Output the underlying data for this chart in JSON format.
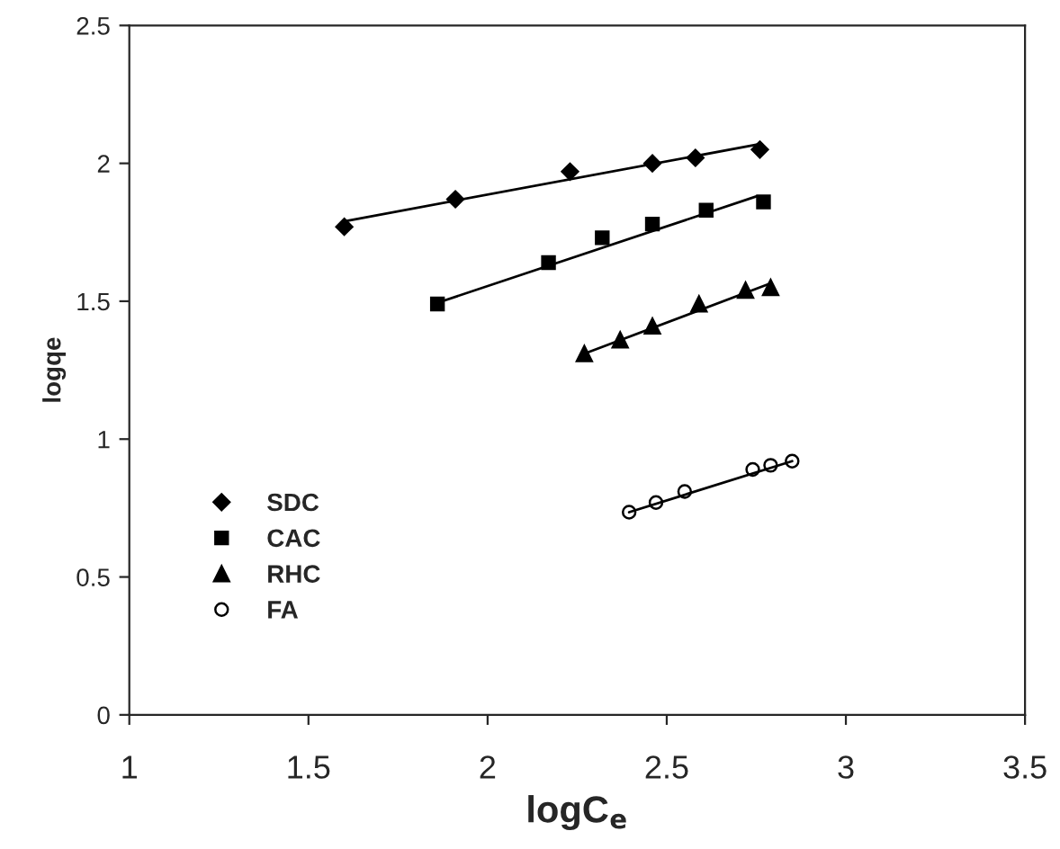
{
  "chart_data": {
    "type": "scatter",
    "xlabel": "logC$_{e}$",
    "ylabel": "logqe",
    "xlim": [
      1,
      3.5
    ],
    "xticks": [
      1,
      1.5,
      2,
      2.5,
      3,
      3.5
    ],
    "ylim": [
      0,
      2.5
    ],
    "yticks": [
      0,
      0.5,
      1,
      1.5,
      2,
      2.5
    ],
    "grid": false,
    "legend": "bottom left",
    "series": [
      {
        "name": "SDC",
        "color": "#000000",
        "marker": "diamond",
        "x": [
          1.6,
          1.91,
          2.23,
          2.46,
          2.58,
          2.76
        ],
        "values": [
          1.77,
          1.87,
          1.97,
          2.0,
          2.02,
          2.05
        ]
      },
      {
        "name": "CAC",
        "color": "#000000",
        "marker": "square",
        "x": [
          1.86,
          2.17,
          2.32,
          2.46,
          2.61,
          2.77
        ],
        "values": [
          1.49,
          1.64,
          1.73,
          1.78,
          1.83,
          1.86
        ]
      },
      {
        "name": "RHC",
        "color": "#000000",
        "marker": "triangle",
        "x": [
          2.27,
          2.37,
          2.46,
          2.59,
          2.72,
          2.79
        ],
        "values": [
          1.31,
          1.36,
          1.41,
          1.49,
          1.54,
          1.55
        ]
      },
      {
        "name": "FA",
        "color": "#000000",
        "marker": "circle",
        "x": [
          2.395,
          2.47,
          2.55,
          2.74,
          2.79,
          2.85
        ],
        "values": [
          0.735,
          0.77,
          0.81,
          0.89,
          0.905,
          0.92
        ]
      },
      {
        "type": "line",
        "color": "#000000",
        "marker": "none",
        "x": [
          1.6,
          2.76
        ],
        "values": [
          1.79,
          2.07
        ]
      },
      {
        "type": "line",
        "color": "#000000",
        "marker": "none",
        "x": [
          1.85,
          2.75
        ],
        "values": [
          1.49,
          1.88
        ]
      },
      {
        "type": "line",
        "color": "#000000",
        "marker": "none",
        "x": [
          2.27,
          2.79
        ],
        "values": [
          1.31,
          1.565
        ]
      },
      {
        "type": "line",
        "color": "#000000",
        "marker": "none",
        "x": [
          2.395,
          2.85
        ],
        "values": [
          0.735,
          0.92
        ]
      }
    ]
  }
}
